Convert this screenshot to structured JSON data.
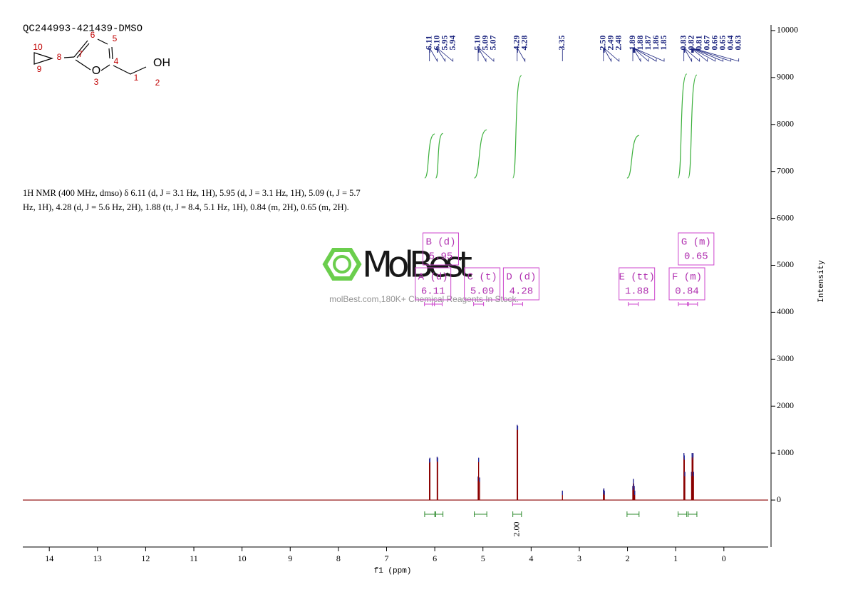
{
  "chart_data": {
    "type": "nmr",
    "title": "QC244993-421439-DMSO",
    "xlabel": "f1 (ppm)",
    "ylabel": "Intensity",
    "description": [
      "1H NMR (400 MHz, dmso) δ 6.11 (d, J = 3.1 Hz, 1H), 5.95 (d, J = 3.1 Hz, 1H), 5.09 (t, J = 5.7",
      "Hz, 1H), 4.28 (d, J = 5.6 Hz, 2H), 1.88 (tt, J = 8.4, 5.1 Hz, 1H), 0.84 (m, 2H), 0.65 (m, 2H)."
    ],
    "watermark": {
      "logo": "MolBest",
      "text": "molBest.com,180K+ Chemical Reagents In Stock."
    },
    "structure": {
      "labels": [
        "10",
        "9",
        "8",
        "7",
        "6",
        "5",
        "4",
        "O",
        "3",
        "1",
        "2",
        "OH"
      ]
    },
    "xlim": [
      14.55,
      -0.92
    ],
    "xticks": [
      14,
      13,
      12,
      11,
      10,
      9,
      8,
      7,
      6,
      5,
      4,
      3,
      2,
      1,
      0
    ],
    "ylim": [
      -1000,
      10120
    ],
    "yticks": [
      0,
      1000,
      2000,
      3000,
      4000,
      5000,
      6000,
      7000,
      8000,
      9000,
      10000
    ],
    "color": "#8b0000",
    "peak_labels": [
      6.11,
      {
        "value": 6.1,
        "label": "6.10"
      },
      5.95,
      5.94,
      {
        "value": 5.1,
        "label": "5.10"
      },
      5.09,
      5.07,
      4.29,
      4.28,
      3.35,
      {
        "value": 2.5,
        "label": "2.50"
      },
      2.49,
      2.48,
      1.89,
      1.88,
      1.87,
      1.86,
      1.85,
      0.83,
      0.82,
      0.81,
      0.67,
      0.66,
      0.65,
      0.64,
      0.63
    ],
    "peak_heights": [
      880,
      900,
      920,
      900,
      500,
      900,
      480,
      1600,
      1580,
      200,
      220,
      250,
      200,
      300,
      450,
      350,
      300,
      200,
      1000,
      950,
      600,
      600,
      1000,
      950,
      1000,
      600
    ],
    "integrals": [
      {
        "value": 0.86,
        "range": [
          6.21,
          6.0
        ]
      },
      {
        "value": 0.87,
        "range": [
          5.98,
          5.83
        ]
      },
      {
        "value": 0.94,
        "range": [
          5.18,
          4.92
        ]
      },
      {
        "value": 2,
        "label": "2.00",
        "range": [
          4.38,
          4.2
        ]
      },
      {
        "value": 0.83,
        "range": [
          2.01,
          1.76
        ]
      },
      {
        "value": 2.03,
        "range": [
          0.95,
          0.77
        ]
      },
      {
        "value": 2.01,
        "range": [
          0.74,
          0.56
        ]
      }
    ],
    "multiplets": [
      {
        "label": "A (d)",
        "shift": 6.11
      },
      {
        "label": "B (d)",
        "shift": 5.95
      },
      {
        "label": "C (t)",
        "shift": 5.09
      },
      {
        "label": "D (d)",
        "shift": 4.28
      },
      {
        "label": "E (tt)",
        "shift": 1.88
      },
      {
        "label": "F (m)",
        "shift": 0.84
      },
      {
        "label": "G (m)",
        "shift": 0.65
      }
    ]
  }
}
